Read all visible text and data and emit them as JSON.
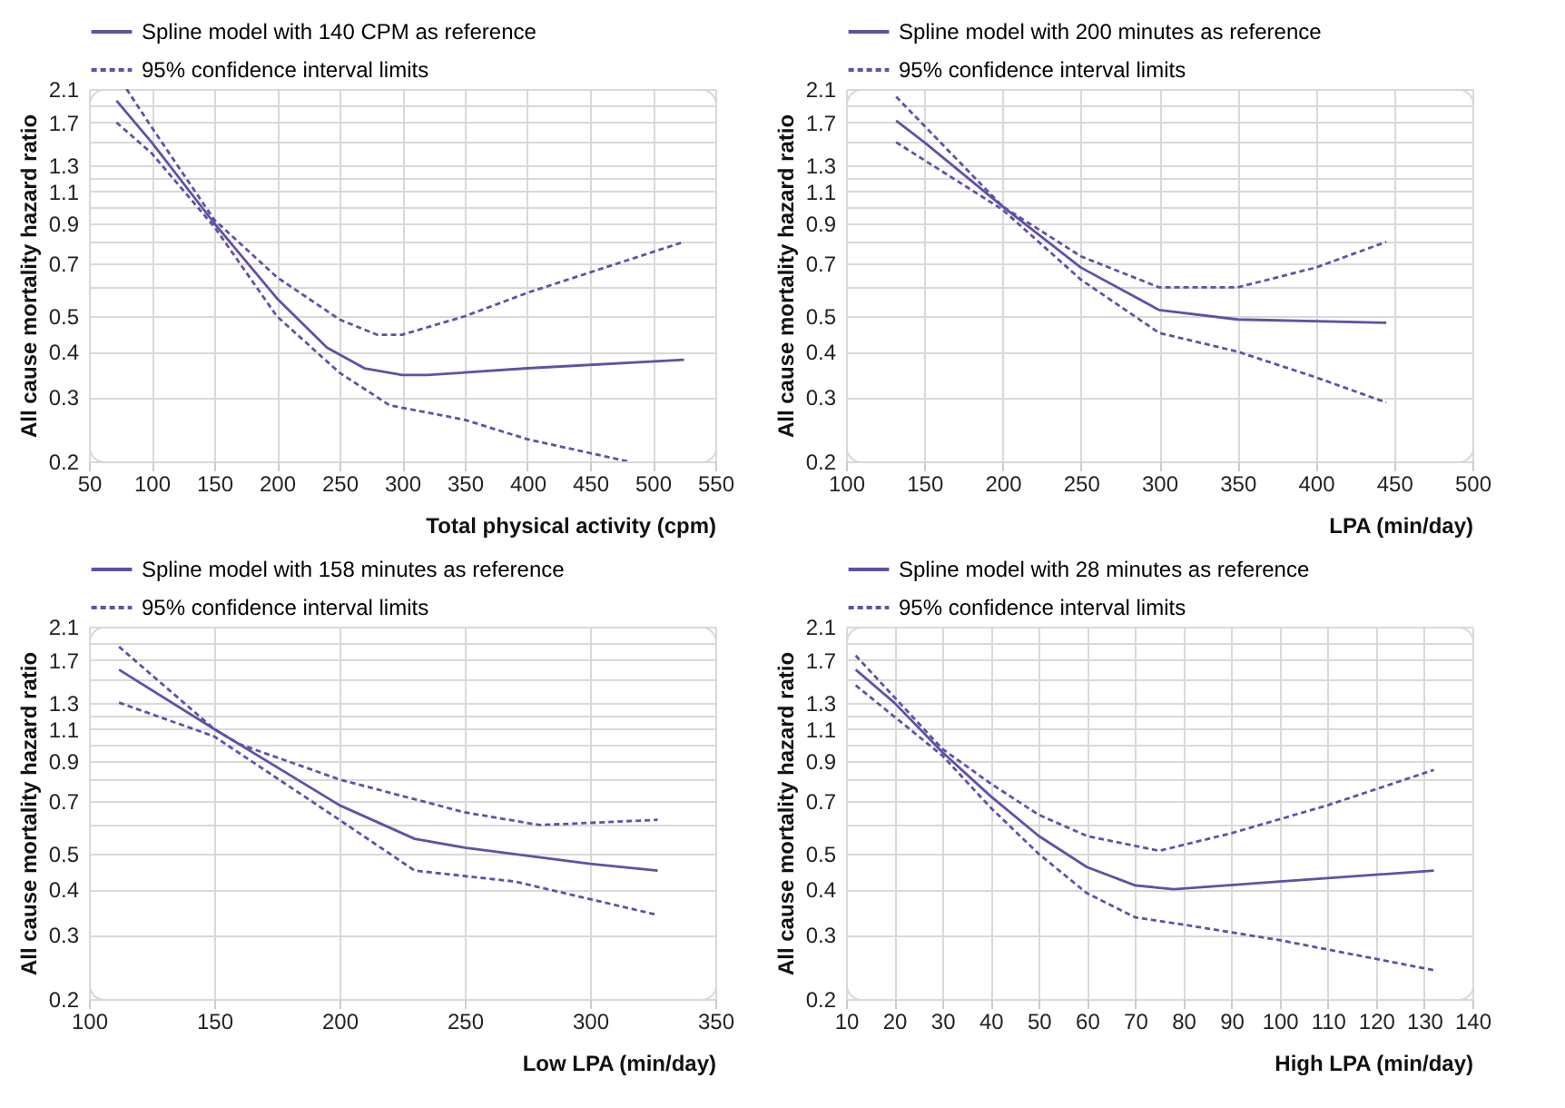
{
  "chart_data": [
    {
      "type": "line",
      "xlabel": "Total physical activity (cpm)",
      "ylabel": "All cause mortality hazard ratio",
      "log": "y",
      "grid": true,
      "legend": "top left",
      "xlim": [
        50,
        550
      ],
      "xticks": [
        50,
        100,
        150,
        200,
        250,
        300,
        350,
        400,
        450,
        500,
        550
      ],
      "ylim": [
        0.2,
        2.1
      ],
      "yticks": [
        0.2,
        0.3,
        0.4,
        0.5,
        {
          "value": 0.6,
          "label": null
        },
        0.7,
        {
          "value": 0.8,
          "label": null
        },
        0.9,
        {
          "value": 1.0,
          "label": null
        },
        1.1,
        {
          "value": 1.2,
          "label": null
        },
        1.3,
        {
          "value": 1.5,
          "label": null
        },
        1.7,
        {
          "value": 1.9,
          "label": null
        },
        2.1
      ],
      "series": [
        {
          "name": "Spline model with 140 CPM as reference",
          "color": "#5e52a6",
          "line_style": "solid",
          "x": [
            72,
            100,
            150,
            200,
            240,
            270,
            300,
            320,
            400,
            525
          ],
          "values": [
            1.95,
            1.5,
            0.9,
            0.56,
            0.41,
            0.36,
            0.345,
            0.345,
            0.36,
            0.38
          ]
        },
        {
          "name": "95% confidence interval limits",
          "color": "#5e52a6",
          "line_style": "dashed",
          "x": [
            80,
            100,
            150,
            200,
            250,
            280,
            300,
            350,
            400,
            525
          ],
          "values": [
            2.1,
            1.65,
            0.92,
            0.64,
            0.49,
            0.445,
            0.445,
            0.5,
            0.58,
            0.8
          ]
        },
        {
          "color": "#5e52a6",
          "line_style": "dashed",
          "x": [
            72,
            100,
            150,
            200,
            250,
            290,
            350,
            400,
            480
          ],
          "values": [
            1.7,
            1.4,
            0.88,
            0.5,
            0.35,
            0.285,
            0.26,
            0.23,
            0.2
          ]
        }
      ]
    },
    {
      "type": "line",
      "xlabel": "LPA (min/day)",
      "ylabel": "All cause mortality hazard ratio",
      "log": "y",
      "grid": true,
      "legend": "top left",
      "xlim": [
        100,
        500
      ],
      "xticks": [
        100,
        150,
        200,
        250,
        300,
        350,
        400,
        450,
        500
      ],
      "ylim": [
        0.2,
        2.1
      ],
      "yticks": [
        0.2,
        0.3,
        0.4,
        0.5,
        {
          "value": 0.6,
          "label": null
        },
        0.7,
        {
          "value": 0.8,
          "label": null
        },
        0.9,
        {
          "value": 1.0,
          "label": null
        },
        1.1,
        {
          "value": 1.2,
          "label": null
        },
        1.3,
        {
          "value": 1.5,
          "label": null
        },
        1.7,
        {
          "value": 1.9,
          "label": null
        },
        2.1
      ],
      "series": [
        {
          "name": "Spline model with 200 minutes as reference",
          "color": "#5e52a6",
          "line_style": "solid",
          "x": [
            132,
            150,
            200,
            250,
            300,
            350,
            445
          ],
          "values": [
            1.72,
            1.5,
            1.0,
            0.68,
            0.52,
            0.49,
            0.48
          ]
        },
        {
          "name": "95% confidence interval limits",
          "color": "#5e52a6",
          "line_style": "dashed",
          "x": [
            132,
            200,
            250,
            300,
            350,
            400,
            445
          ],
          "values": [
            2.0,
            1.0,
            0.73,
            0.6,
            0.6,
            0.68,
            0.8
          ]
        },
        {
          "color": "#5e52a6",
          "line_style": "dashed",
          "x": [
            132,
            200,
            250,
            300,
            350,
            400,
            445
          ],
          "values": [
            1.5,
            0.98,
            0.63,
            0.45,
            0.4,
            0.34,
            0.29
          ]
        }
      ]
    },
    {
      "type": "line",
      "xlabel": "Low LPA (min/day)",
      "ylabel": "All cause mortality hazard ratio",
      "log": "y",
      "grid": true,
      "legend": "top left",
      "xlim": [
        100,
        350
      ],
      "xticks": [
        100,
        150,
        200,
        250,
        300,
        350
      ],
      "ylim": [
        0.2,
        2.1
      ],
      "yticks": [
        0.2,
        0.3,
        0.4,
        0.5,
        {
          "value": 0.6,
          "label": null
        },
        0.7,
        {
          "value": 0.8,
          "label": null
        },
        0.9,
        {
          "value": 1.0,
          "label": null
        },
        1.1,
        {
          "value": 1.2,
          "label": null
        },
        1.3,
        {
          "value": 1.5,
          "label": null
        },
        1.7,
        {
          "value": 1.9,
          "label": null
        },
        2.1
      ],
      "series": [
        {
          "name": "Spline model with 158 minutes as reference",
          "color": "#5e52a6",
          "line_style": "solid",
          "x": [
            112,
            150,
            200,
            230,
            250,
            300,
            327
          ],
          "values": [
            1.6,
            1.1,
            0.68,
            0.55,
            0.52,
            0.47,
            0.45
          ]
        },
        {
          "name": "95% confidence interval limits",
          "color": "#5e52a6",
          "line_style": "dashed",
          "x": [
            112,
            150,
            160,
            200,
            250,
            280,
            327
          ],
          "values": [
            1.85,
            1.1,
            1.0,
            0.8,
            0.65,
            0.6,
            0.62
          ]
        },
        {
          "color": "#5e52a6",
          "line_style": "dashed",
          "x": [
            112,
            150,
            200,
            230,
            270,
            327
          ],
          "values": [
            1.3,
            1.05,
            0.62,
            0.45,
            0.42,
            0.34
          ]
        }
      ]
    },
    {
      "type": "line",
      "xlabel": "High LPA (min/day)",
      "ylabel": "All cause mortality hazard ratio",
      "log": "y",
      "grid": true,
      "legend": "top left",
      "xlim": [
        10,
        140
      ],
      "xticks": [
        10,
        20,
        30,
        40,
        50,
        60,
        70,
        80,
        90,
        100,
        110,
        120,
        130,
        140
      ],
      "ylim": [
        0.2,
        2.1
      ],
      "yticks": [
        0.2,
        0.3,
        0.4,
        0.5,
        {
          "value": 0.6,
          "label": null
        },
        0.7,
        {
          "value": 0.8,
          "label": null
        },
        0.9,
        {
          "value": 1.0,
          "label": null
        },
        1.1,
        {
          "value": 1.2,
          "label": null
        },
        1.3,
        {
          "value": 1.5,
          "label": null
        },
        1.7,
        {
          "value": 1.9,
          "label": null
        },
        2.1
      ],
      "series": [
        {
          "name": "Spline model with 28 minutes as reference",
          "color": "#5e52a6",
          "line_style": "solid",
          "x": [
            12,
            20,
            30,
            40,
            50,
            60,
            70,
            78,
            100,
            132
          ],
          "values": [
            1.6,
            1.3,
            0.95,
            0.72,
            0.56,
            0.46,
            0.41,
            0.4,
            0.42,
            0.45
          ]
        },
        {
          "name": "95% confidence interval limits",
          "color": "#5e52a6",
          "line_style": "dashed",
          "x": [
            12,
            30,
            40,
            50,
            60,
            75,
            90,
            110,
            132
          ],
          "values": [
            1.75,
            0.97,
            0.78,
            0.64,
            0.56,
            0.51,
            0.57,
            0.68,
            0.85
          ]
        },
        {
          "color": "#5e52a6",
          "line_style": "dashed",
          "x": [
            12,
            30,
            40,
            50,
            60,
            70,
            80,
            100,
            132
          ],
          "values": [
            1.45,
            0.93,
            0.67,
            0.5,
            0.39,
            0.335,
            0.32,
            0.29,
            0.24
          ]
        }
      ]
    }
  ]
}
